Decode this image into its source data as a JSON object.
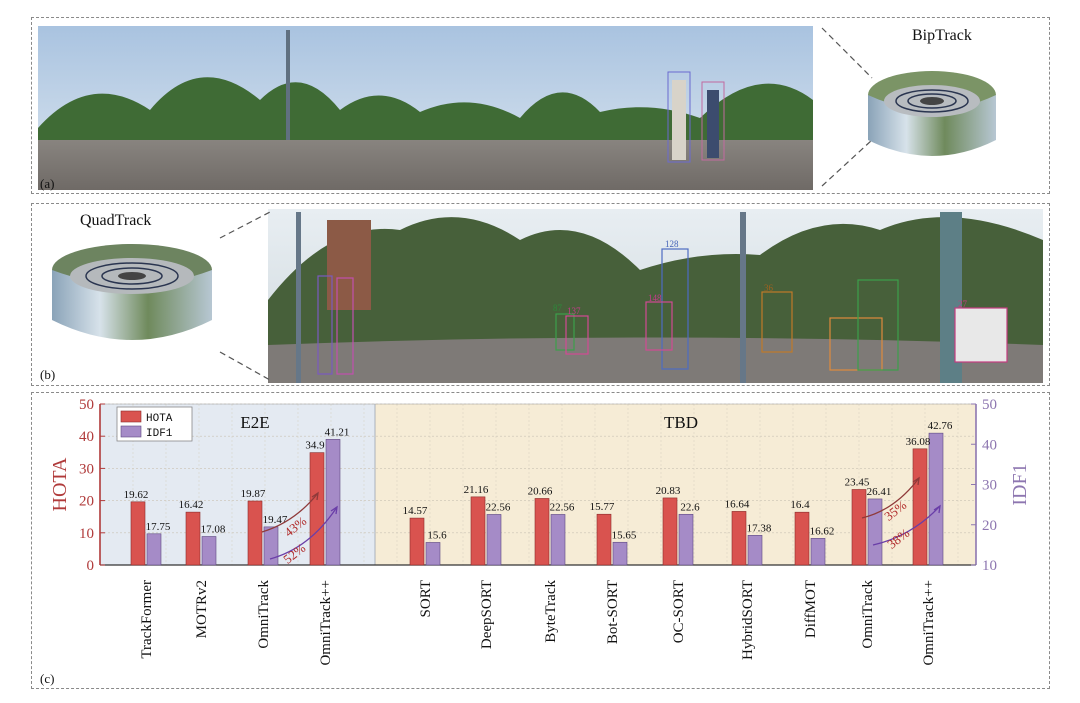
{
  "panels": {
    "a_label": "(a)",
    "b_label": "(b)",
    "c_label": "(c)",
    "biptrack_title": "BipTrack",
    "quadtrack_title": "QuadTrack"
  },
  "track_ids": [
    "87",
    "137",
    "128",
    "148",
    "36",
    "27"
  ],
  "chart_data": {
    "type": "bar",
    "groups": [
      {
        "name": "E2E",
        "categories": [
          "TrackFormer",
          "MOTRv2",
          "OmniTrack",
          "OmniTrack++"
        ]
      },
      {
        "name": "TBD",
        "categories": [
          "SORT",
          "DeepSORT",
          "ByteTrack",
          "Bot-SORT",
          "OC-SORT",
          "HybridSORT",
          "DiffMOT",
          "OmniTrack",
          "OmniTrack++"
        ]
      }
    ],
    "categories": [
      "TrackFormer",
      "MOTRv2",
      "OmniTrack",
      "OmniTrack++",
      "SORT",
      "DeepSORT",
      "ByteTrack",
      "Bot-SORT",
      "OC-SORT",
      "HybridSORT",
      "DiffMOT",
      "OmniTrack",
      "OmniTrack++"
    ],
    "series": [
      {
        "name": "HOTA",
        "axis": "left",
        "color": "#d9534f",
        "values": [
          19.62,
          16.42,
          19.87,
          34.9,
          14.57,
          21.16,
          20.66,
          15.77,
          20.83,
          16.64,
          16.4,
          23.45,
          36.08
        ],
        "labels": [
          "19.62",
          "16.42",
          "19.87",
          "34.9",
          "14.57",
          "21.16",
          "20.66",
          "15.77",
          "20.83",
          "16.64",
          "16.4",
          "23.45",
          "36.08"
        ]
      },
      {
        "name": "IDF1",
        "axis": "right",
        "color": "#a58bc7",
        "values": [
          17.75,
          17.08,
          19.47,
          41.21,
          15.6,
          22.56,
          22.56,
          15.65,
          22.6,
          17.38,
          16.62,
          26.41,
          42.76
        ],
        "labels": [
          "17.75",
          "17.08",
          "19.47",
          "41.21",
          "15.6",
          "22.56",
          "22.56",
          "15.65",
          "22.6",
          "17.38",
          "16.62",
          "26.41",
          "42.76"
        ]
      }
    ],
    "ylabel_left": "HOTA",
    "ylabel_right": "IDF1",
    "ylim_left": [
      0,
      50
    ],
    "ylim_right": [
      10,
      50
    ],
    "yticks_left": [
      "0",
      "10",
      "20",
      "30",
      "40",
      "50"
    ],
    "yticks_right": [
      "10",
      "20",
      "30",
      "40",
      "50"
    ],
    "legend_position": "top-left",
    "grid": true,
    "annotations": [
      {
        "group": "E2E",
        "text": "43%",
        "color": "#b02a2a"
      },
      {
        "group": "E2E",
        "text": "52%",
        "color": "#b02a2a"
      },
      {
        "group": "TBD",
        "text": "35%",
        "color": "#b02a2a"
      },
      {
        "group": "TBD",
        "text": "38%",
        "color": "#b02a2a"
      }
    ],
    "colors": {
      "hota_axis": "#b03a3a",
      "idf1_axis": "#8d76b0",
      "e2e_bg": "#e4eaf2",
      "tbd_bg": "#f6ecd6"
    }
  }
}
